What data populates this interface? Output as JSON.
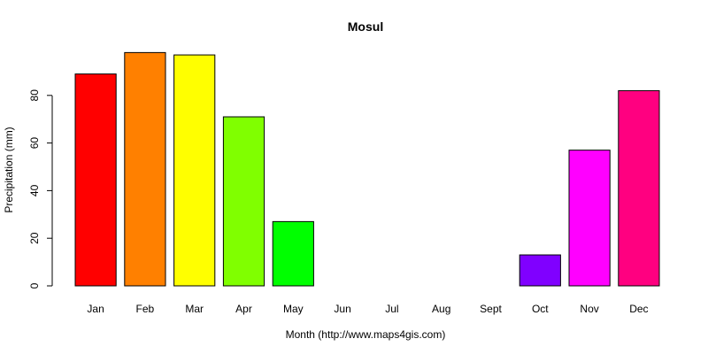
{
  "chart_data": {
    "type": "bar",
    "title": "Mosul",
    "xlabel": "Month (http://www.maps4gis.com)",
    "ylabel": "Precipitation (mm)",
    "categories": [
      "Jan",
      "Feb",
      "Mar",
      "Apr",
      "May",
      "Jun",
      "Jul",
      "Aug",
      "Sept",
      "Oct",
      "Nov",
      "Dec"
    ],
    "values": [
      89,
      98,
      97,
      71,
      27,
      0,
      0,
      0,
      0,
      13,
      57,
      82
    ],
    "colors": [
      "#FF0000",
      "#FF8000",
      "#FFFF00",
      "#80FF00",
      "#00FF00",
      "#00FF80",
      "#00FFFF",
      "#0080FF",
      "#0000FF",
      "#8000FF",
      "#FF00FF",
      "#FF0080"
    ],
    "yticks": [
      0,
      20,
      40,
      60,
      80
    ],
    "ylim": [
      0,
      100
    ],
    "grid": false,
    "legend": "none"
  }
}
